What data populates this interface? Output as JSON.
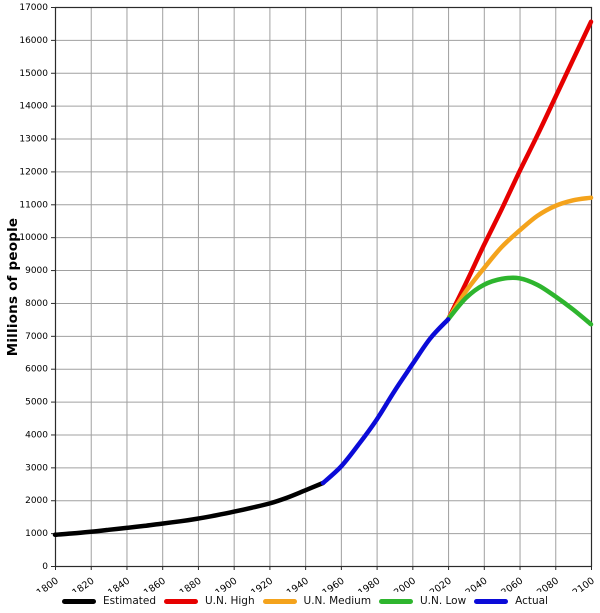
{
  "chart_data": {
    "type": "line",
    "title": "",
    "xlabel": "",
    "ylabel": "Millions of people",
    "xlim": [
      1800,
      2100
    ],
    "ylim": [
      0,
      17000
    ],
    "x_ticks": [
      1800,
      1820,
      1840,
      1860,
      1880,
      1900,
      1920,
      1940,
      1960,
      1980,
      2000,
      2020,
      2040,
      2060,
      2080,
      2100
    ],
    "y_ticks": [
      0,
      1000,
      2000,
      3000,
      4000,
      5000,
      6000,
      7000,
      8000,
      9000,
      10000,
      11000,
      12000,
      13000,
      14000,
      15000,
      16000,
      17000
    ],
    "grid": true,
    "legend_position": "bottom",
    "legend_order": [
      "Estimated",
      "U.N. High",
      "U.N. Medium",
      "U.N. Low",
      "Actual"
    ],
    "series": [
      {
        "name": "Estimated",
        "color": "#000000",
        "x": [
          1800,
          1810,
          1820,
          1830,
          1840,
          1850,
          1860,
          1870,
          1880,
          1890,
          1900,
          1910,
          1920,
          1930,
          1940,
          1950
        ],
        "values": [
          950,
          990,
          1040,
          1100,
          1160,
          1220,
          1290,
          1360,
          1440,
          1540,
          1650,
          1770,
          1900,
          2080,
          2300,
          2525
        ]
      },
      {
        "name": "U.N. High",
        "color": "#e60000",
        "x": [
          2020,
          2030,
          2040,
          2050,
          2060,
          2070,
          2080,
          2090,
          2100
        ],
        "values": [
          7500,
          8600,
          9750,
          10850,
          12000,
          13100,
          14250,
          15400,
          16550
        ]
      },
      {
        "name": "U.N. Medium",
        "color": "#f4a31c",
        "x": [
          2020,
          2030,
          2040,
          2050,
          2060,
          2070,
          2080,
          2090,
          2100
        ],
        "values": [
          7500,
          8350,
          9050,
          9700,
          10200,
          10650,
          10950,
          11120,
          11200
        ]
      },
      {
        "name": "U.N. Low",
        "color": "#2eb52e",
        "x": [
          2020,
          2030,
          2040,
          2050,
          2060,
          2070,
          2080,
          2090,
          2100
        ],
        "values": [
          7500,
          8150,
          8550,
          8730,
          8750,
          8550,
          8200,
          7800,
          7350
        ]
      },
      {
        "name": "Actual",
        "color": "#0b0bd8",
        "x": [
          1950,
          1960,
          1970,
          1980,
          1990,
          2000,
          2010,
          2020
        ],
        "values": [
          2525,
          3020,
          3700,
          4450,
          5320,
          6130,
          6920,
          7500
        ]
      }
    ],
    "style": {
      "grid_color": "#a0a0a0",
      "spine_color": "#2b2b2b",
      "tick_label_color": "#000000",
      "line_width": 4.5
    }
  }
}
